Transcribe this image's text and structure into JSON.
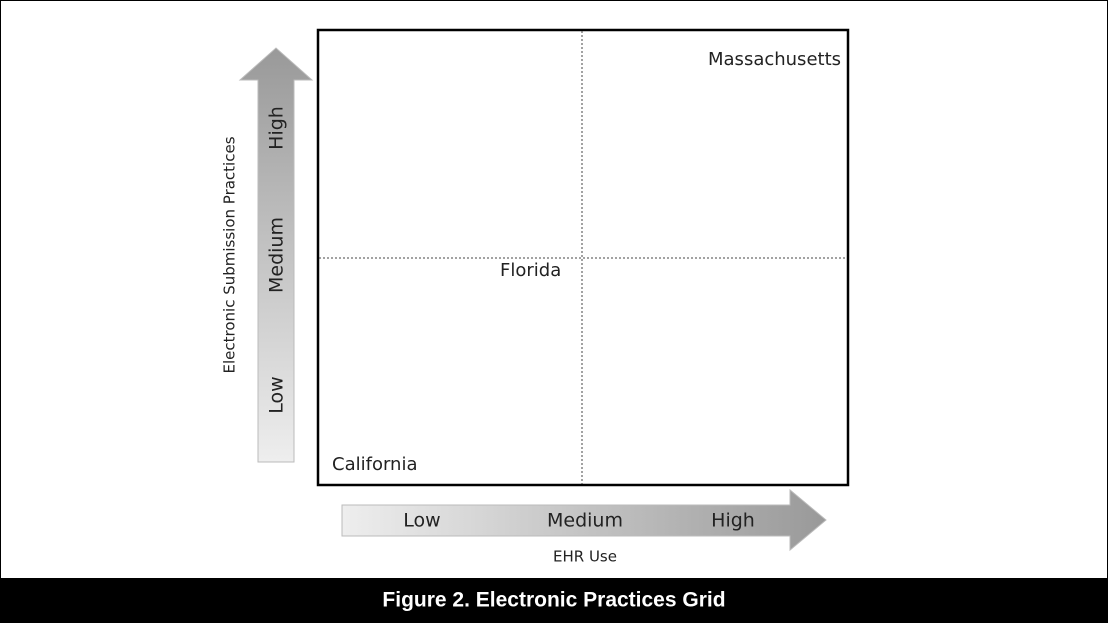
{
  "y_axis": {
    "label": "Electronic Submission Practices",
    "levels": [
      "Low",
      "Medium",
      "High"
    ]
  },
  "x_axis": {
    "label": "EHR Use",
    "levels": [
      "Low",
      "Medium",
      "High"
    ]
  },
  "points": [
    {
      "label": "Massachusetts"
    },
    {
      "label": "Florida"
    },
    {
      "label": "California"
    }
  ],
  "caption": "Figure 2. Electronic Practices Grid"
}
